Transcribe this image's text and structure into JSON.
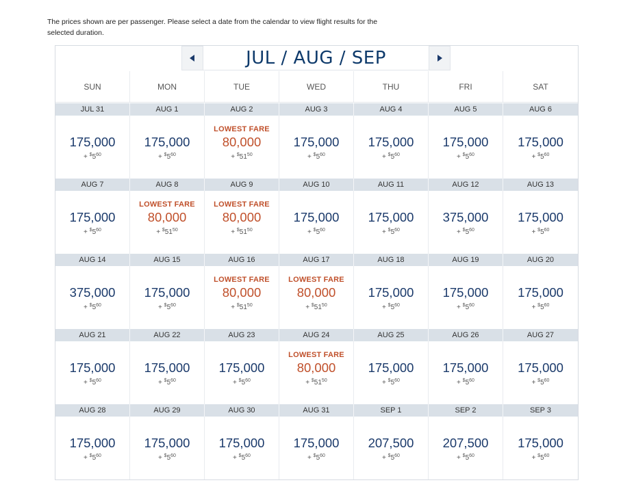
{
  "notice": "The prices shown are per passenger. Please select a date from the calendar to view flight results for the selected duration.",
  "nav": {
    "title": "JUL / AUG / SEP",
    "prev_icon": "triangle-left-icon",
    "next_icon": "triangle-right-icon"
  },
  "days": [
    "SUN",
    "MON",
    "TUE",
    "WED",
    "THU",
    "FRI",
    "SAT"
  ],
  "lowest_label": "LOWEST FARE",
  "colors": {
    "accent": "#c0502b",
    "navy": "#1b3a6b",
    "date_bar": "#d9e0e7"
  },
  "weeks": [
    [
      {
        "date": "JUL 31",
        "miles": "175,000",
        "tax": "5",
        "cents": "60"
      },
      {
        "date": "AUG 1",
        "miles": "175,000",
        "tax": "5",
        "cents": "60"
      },
      {
        "date": "AUG 2",
        "miles": "80,000",
        "tax": "51",
        "cents": "50",
        "lowest": true
      },
      {
        "date": "AUG 3",
        "miles": "175,000",
        "tax": "5",
        "cents": "60"
      },
      {
        "date": "AUG 4",
        "miles": "175,000",
        "tax": "5",
        "cents": "60"
      },
      {
        "date": "AUG 5",
        "miles": "175,000",
        "tax": "5",
        "cents": "60"
      },
      {
        "date": "AUG 6",
        "miles": "175,000",
        "tax": "5",
        "cents": "60"
      }
    ],
    [
      {
        "date": "AUG 7",
        "miles": "175,000",
        "tax": "5",
        "cents": "60"
      },
      {
        "date": "AUG 8",
        "miles": "80,000",
        "tax": "51",
        "cents": "50",
        "lowest": true
      },
      {
        "date": "AUG 9",
        "miles": "80,000",
        "tax": "51",
        "cents": "50",
        "lowest": true
      },
      {
        "date": "AUG 10",
        "miles": "175,000",
        "tax": "5",
        "cents": "60"
      },
      {
        "date": "AUG 11",
        "miles": "175,000",
        "tax": "5",
        "cents": "60"
      },
      {
        "date": "AUG 12",
        "miles": "375,000",
        "tax": "5",
        "cents": "60"
      },
      {
        "date": "AUG 13",
        "miles": "175,000",
        "tax": "5",
        "cents": "60"
      }
    ],
    [
      {
        "date": "AUG 14",
        "miles": "375,000",
        "tax": "5",
        "cents": "60"
      },
      {
        "date": "AUG 15",
        "miles": "175,000",
        "tax": "5",
        "cents": "60"
      },
      {
        "date": "AUG 16",
        "miles": "80,000",
        "tax": "51",
        "cents": "50",
        "lowest": true
      },
      {
        "date": "AUG 17",
        "miles": "80,000",
        "tax": "51",
        "cents": "50",
        "lowest": true
      },
      {
        "date": "AUG 18",
        "miles": "175,000",
        "tax": "5",
        "cents": "60"
      },
      {
        "date": "AUG 19",
        "miles": "175,000",
        "tax": "5",
        "cents": "60"
      },
      {
        "date": "AUG 20",
        "miles": "175,000",
        "tax": "5",
        "cents": "60"
      }
    ],
    [
      {
        "date": "AUG 21",
        "miles": "175,000",
        "tax": "5",
        "cents": "60"
      },
      {
        "date": "AUG 22",
        "miles": "175,000",
        "tax": "5",
        "cents": "60"
      },
      {
        "date": "AUG 23",
        "miles": "175,000",
        "tax": "5",
        "cents": "60"
      },
      {
        "date": "AUG 24",
        "miles": "80,000",
        "tax": "51",
        "cents": "50",
        "lowest": true
      },
      {
        "date": "AUG 25",
        "miles": "175,000",
        "tax": "5",
        "cents": "60"
      },
      {
        "date": "AUG 26",
        "miles": "175,000",
        "tax": "5",
        "cents": "60"
      },
      {
        "date": "AUG 27",
        "miles": "175,000",
        "tax": "5",
        "cents": "60"
      }
    ],
    [
      {
        "date": "AUG 28",
        "miles": "175,000",
        "tax": "5",
        "cents": "60"
      },
      {
        "date": "AUG 29",
        "miles": "175,000",
        "tax": "5",
        "cents": "60"
      },
      {
        "date": "AUG 30",
        "miles": "175,000",
        "tax": "5",
        "cents": "60"
      },
      {
        "date": "AUG 31",
        "miles": "175,000",
        "tax": "5",
        "cents": "60"
      },
      {
        "date": "SEP 1",
        "miles": "207,500",
        "tax": "5",
        "cents": "60"
      },
      {
        "date": "SEP 2",
        "miles": "207,500",
        "tax": "5",
        "cents": "60"
      },
      {
        "date": "SEP 3",
        "miles": "175,000",
        "tax": "5",
        "cents": "60"
      }
    ]
  ]
}
